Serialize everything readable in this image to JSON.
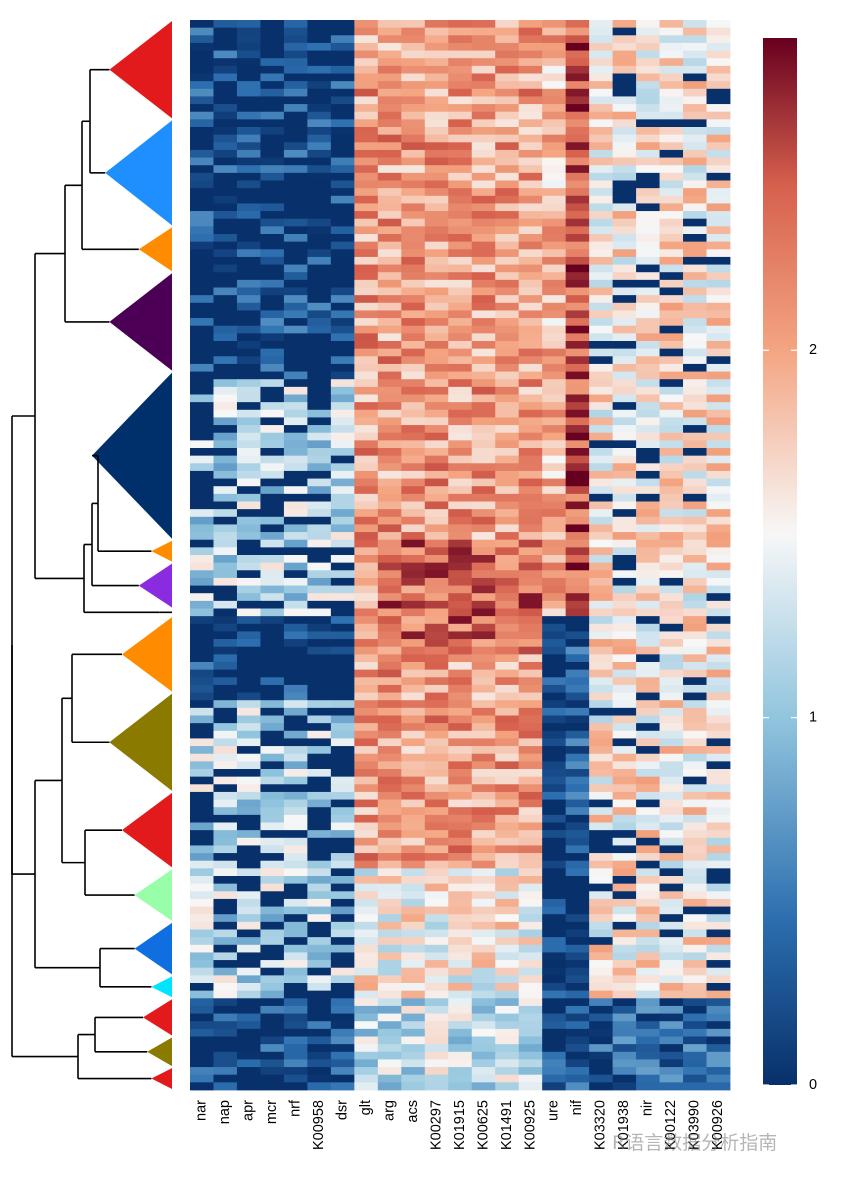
{
  "chart_data": {
    "type": "heatmap",
    "title": "",
    "xlabel": "",
    "ylabel": "",
    "columns": [
      "nar",
      "nap",
      "apr",
      "mcr",
      "nrf",
      "K00958",
      "dsr",
      "glt",
      "arg",
      "acs",
      "K00297",
      "K01915",
      "K00625",
      "K01491",
      "K00925",
      "ure",
      "nif",
      "K03320",
      "K01938",
      "nir",
      "K00122",
      "K03990",
      "K00926"
    ],
    "n_rows": 140,
    "color_scale": {
      "min": 0,
      "max": 2.85,
      "ticks": [
        0,
        1,
        2
      ],
      "stops": [
        {
          "v": 0.0,
          "color": "#08306b"
        },
        {
          "v": 0.45,
          "color": "#2c6eaf"
        },
        {
          "v": 1.0,
          "color": "#92c5de"
        },
        {
          "v": 1.5,
          "color": "#f7f7f7"
        },
        {
          "v": 2.0,
          "color": "#f4a582"
        },
        {
          "v": 2.45,
          "color": "#d6604d"
        },
        {
          "v": 2.85,
          "color": "#67001f"
        }
      ]
    },
    "row_clusters": [
      {
        "rows": [
          0,
          13
        ],
        "color": "#e31a1c"
      },
      {
        "rows": [
          13,
          27
        ],
        "color": "#1f8fff"
      },
      {
        "rows": [
          27,
          33
        ],
        "color": "#ff8c00"
      },
      {
        "rows": [
          33,
          46
        ],
        "color": "#4b0055"
      },
      {
        "rows": [
          46,
          68
        ],
        "color": "#00306b"
      },
      {
        "rows": [
          68,
          71
        ],
        "color": "#ff8c00"
      },
      {
        "rows": [
          71,
          77
        ],
        "color": "#8a2be2"
      },
      {
        "rows": [
          77,
          78
        ],
        "color": "#000000"
      },
      {
        "rows": [
          78,
          88
        ],
        "color": "#ff8c00"
      },
      {
        "rows": [
          88,
          101
        ],
        "color": "#8b7a00"
      },
      {
        "rows": [
          101,
          111
        ],
        "color": "#e31a1c"
      },
      {
        "rows": [
          111,
          118
        ],
        "color": "#98ffa8"
      },
      {
        "rows": [
          118,
          125
        ],
        "color": "#0f6fe0"
      },
      {
        "rows": [
          125,
          128
        ],
        "color": "#00e5ff"
      },
      {
        "rows": [
          128,
          133
        ],
        "color": "#e31a1c"
      },
      {
        "rows": [
          133,
          137
        ],
        "color": "#8b7a00"
      },
      {
        "rows": [
          137,
          140
        ],
        "color": "#e31a1c"
      }
    ]
  },
  "watermark": "R语言数据分析指南"
}
